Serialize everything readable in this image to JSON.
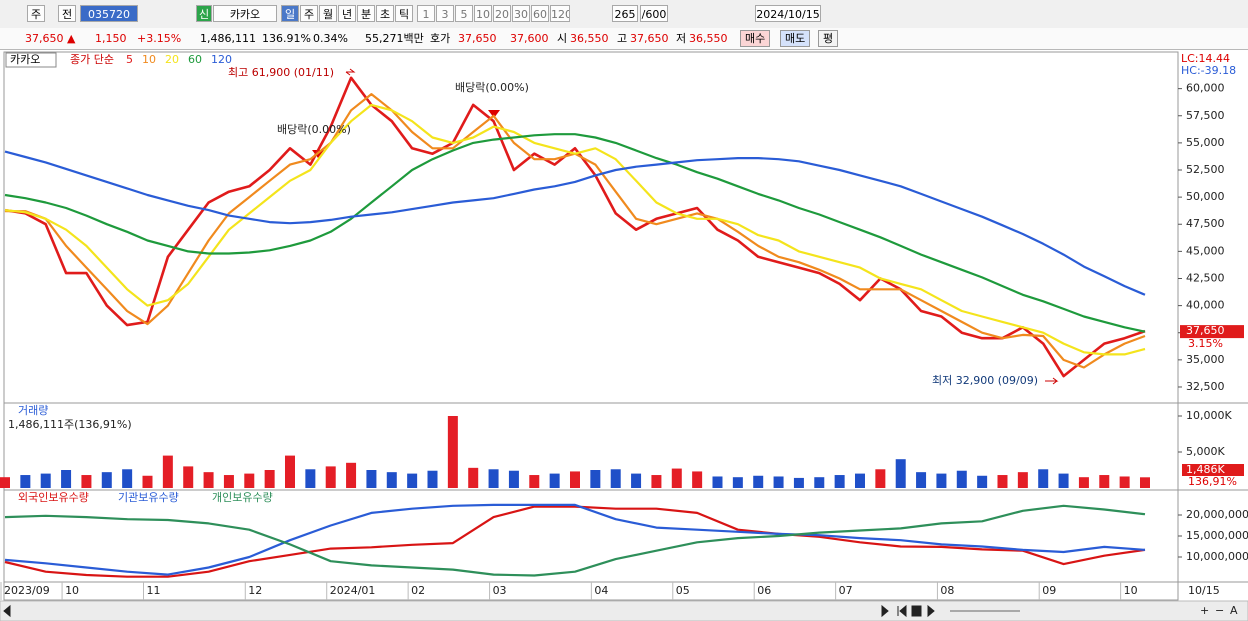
{
  "toolbar": {
    "items": [
      "주",
      "전",
      "035720",
      "신",
      "카카오",
      "일",
      "주",
      "월",
      "년",
      "분",
      "초",
      "틱",
      "1",
      "3",
      "5",
      "10",
      "20",
      "30",
      "60",
      "120",
      "265",
      "/600",
      "2024/10/15"
    ]
  },
  "infobar": {
    "items": [
      "37,650 ▲",
      "1,150",
      "+3.15%",
      "1,486,111",
      "136.91%",
      "0.34%",
      "55,271백만",
      "호가",
      "37,650",
      "37,600",
      "시",
      "36,550",
      "고",
      "37,650",
      "저",
      "36,550",
      "매수",
      "매도",
      "평"
    ]
  },
  "x_axis": {
    "categories": [
      "2023/09",
      null,
      null,
      "10",
      null,
      null,
      null,
      "11",
      null,
      null,
      null,
      null,
      "12",
      null,
      null,
      null,
      "2024/01",
      null,
      null,
      null,
      "02",
      null,
      null,
      null,
      "03",
      null,
      null,
      null,
      null,
      "04",
      null,
      null,
      null,
      "05",
      null,
      null,
      null,
      "06",
      null,
      null,
      null,
      "07",
      null,
      null,
      null,
      null,
      "08",
      null,
      null,
      null,
      null,
      "09",
      null,
      null,
      null,
      "10",
      null
    ],
    "end_label": "10/15"
  },
  "chart_data": [
    {
      "type": "line",
      "stock": "카카오",
      "legend_title": "종가 단순",
      "lc": "LC:14.44",
      "hc": "HC:-39.18",
      "last_price": "37,650",
      "last_change": "3.15%",
      "ylim": [
        31300,
        63100
      ],
      "yticks": [
        {
          "value": 32500,
          "label": "32,500"
        },
        {
          "value": 35000,
          "label": "35,000"
        },
        {
          "value": 37500,
          "label": "37,500"
        },
        {
          "value": 40000,
          "label": "40,000"
        },
        {
          "value": 42500,
          "label": "42,500"
        },
        {
          "value": 45000,
          "label": "45,000"
        },
        {
          "value": 47500,
          "label": "47,500"
        },
        {
          "value": 50000,
          "label": "50,000"
        },
        {
          "value": 52500,
          "label": "52,500"
        },
        {
          "value": 55000,
          "label": "55,000"
        },
        {
          "value": 57500,
          "label": "57,500"
        },
        {
          "value": 60000,
          "label": "60,000"
        }
      ],
      "annotations": [
        "최고 61,900 (01/11)",
        "배당락(0.00%)",
        "배당락(0.00%)",
        "최저 32,900 (09/09)"
      ],
      "series": [
        {
          "name": "5",
          "color": "#e01b1b",
          "values": [
            48800,
            48500,
            47500,
            43000,
            43000,
            40000,
            38200,
            38500,
            44500,
            47000,
            49500,
            50500,
            51000,
            52500,
            54500,
            53000,
            56500,
            61000,
            58500,
            57000,
            54500,
            54000,
            55000,
            58500,
            57000,
            52500,
            54000,
            53000,
            54500,
            52000,
            48500,
            47000,
            48000,
            48500,
            49000,
            47000,
            46000,
            44500,
            44000,
            43500,
            43000,
            42000,
            40500,
            42500,
            41500,
            39500,
            39000,
            37500,
            37000,
            37000,
            38000,
            36500,
            33500,
            35000,
            36500,
            37000,
            37650
          ]
        },
        {
          "name": "10",
          "color": "#f08a1e",
          "values": [
            48700,
            48700,
            48000,
            45500,
            43500,
            41500,
            39500,
            38300,
            40000,
            43000,
            46000,
            48500,
            50000,
            51500,
            53000,
            53500,
            55000,
            58000,
            59500,
            58000,
            56000,
            54500,
            54500,
            56000,
            57500,
            55000,
            53500,
            53500,
            54000,
            53000,
            50500,
            48000,
            47500,
            48000,
            48500,
            48000,
            46800,
            45500,
            44500,
            44000,
            43300,
            42500,
            41500,
            41500,
            41500,
            40500,
            39500,
            38500,
            37500,
            37000,
            37300,
            37200,
            35000,
            34300,
            35500,
            36500,
            37200
          ]
        },
        {
          "name": "20",
          "color": "#f4e41c",
          "values": [
            48800,
            48600,
            48000,
            47000,
            45500,
            43500,
            41500,
            40000,
            40500,
            42000,
            44500,
            47000,
            48500,
            50000,
            51500,
            52500,
            55000,
            57000,
            58500,
            58000,
            57000,
            55500,
            55000,
            55500,
            56500,
            56000,
            55000,
            54500,
            54000,
            54500,
            53500,
            51500,
            49500,
            48500,
            48000,
            48000,
            47500,
            46500,
            46000,
            45000,
            44500,
            44000,
            43500,
            42500,
            42000,
            41500,
            40500,
            39500,
            39000,
            38500,
            38000,
            37500,
            36500,
            35700,
            35500,
            35500,
            36000
          ]
        },
        {
          "name": "60",
          "color": "#1e9a3c",
          "values": [
            50200,
            49900,
            49500,
            49000,
            48300,
            47500,
            46800,
            46000,
            45500,
            45000,
            44800,
            44800,
            44900,
            45100,
            45500,
            46000,
            46800,
            48000,
            49500,
            51000,
            52500,
            53500,
            54300,
            55000,
            55300,
            55500,
            55700,
            55800,
            55800,
            55500,
            55000,
            54300,
            53600,
            53000,
            52300,
            51700,
            51000,
            50300,
            49700,
            49000,
            48400,
            47700,
            47000,
            46300,
            45500,
            44700,
            44000,
            43300,
            42600,
            41800,
            41000,
            40400,
            39700,
            39000,
            38500,
            38000,
            37600
          ]
        },
        {
          "name": "120",
          "color": "#2a5cd6",
          "values": [
            54200,
            53700,
            53200,
            52600,
            52000,
            51400,
            50800,
            50200,
            49700,
            49200,
            48800,
            48300,
            48000,
            47700,
            47600,
            47700,
            47900,
            48200,
            48400,
            48600,
            48900,
            49200,
            49500,
            49700,
            49900,
            50300,
            50700,
            51000,
            51400,
            52000,
            52500,
            52800,
            53000,
            53200,
            53400,
            53500,
            53600,
            53600,
            53500,
            53300,
            52900,
            52500,
            52000,
            51500,
            51000,
            50300,
            49600,
            48900,
            48200,
            47400,
            46600,
            45700,
            44700,
            43600,
            42700,
            41800,
            41000
          ]
        }
      ]
    },
    {
      "type": "bar",
      "title": "거래량",
      "summary": "1,486,111주(136,91%)",
      "last_label": "1,486K",
      "last_pct": "136,91%",
      "ylim": [
        0,
        11250
      ],
      "yticks": [
        {
          "value": 5000,
          "label": "5,000K"
        },
        {
          "value": 10000,
          "label": "10,000K"
        }
      ],
      "values": [
        1500,
        1800,
        2000,
        2500,
        1800,
        2200,
        2600,
        1700,
        4500,
        3000,
        2200,
        1800,
        2000,
        2500,
        4500,
        2600,
        3000,
        3500,
        2500,
        2200,
        2000,
        2400,
        10000,
        2800,
        2600,
        2400,
        1800,
        2000,
        2300,
        2500,
        2600,
        2000,
        1800,
        2700,
        2300,
        1600,
        1500,
        1700,
        1600,
        1400,
        1500,
        1800,
        2000,
        2600,
        4000,
        2200,
        2000,
        2400,
        1700,
        1800,
        2200,
        2600,
        2000,
        1500,
        1800,
        1600,
        1486
      ],
      "colors": [
        "#e41e26",
        "#1f4fc8",
        "#1f4fc8",
        "#1f4fc8",
        "#e41e26",
        "#1f4fc8",
        "#1f4fc8",
        "#e41e26",
        "#e41e26",
        "#e41e26",
        "#e41e26",
        "#e41e26",
        "#e41e26",
        "#e41e26",
        "#e41e26",
        "#1f4fc8",
        "#e41e26",
        "#e41e26",
        "#1f4fc8",
        "#1f4fc8",
        "#1f4fc8",
        "#1f4fc8",
        "#e41e26",
        "#e41e26",
        "#1f4fc8",
        "#1f4fc8",
        "#e41e26",
        "#1f4fc8",
        "#e41e26",
        "#1f4fc8",
        "#1f4fc8",
        "#1f4fc8",
        "#e41e26",
        "#e41e26",
        "#e41e26",
        "#1f4fc8",
        "#1f4fc8",
        "#1f4fc8",
        "#1f4fc8",
        "#1f4fc8",
        "#1f4fc8",
        "#1f4fc8",
        "#1f4fc8",
        "#e41e26",
        "#1f4fc8",
        "#1f4fc8",
        "#1f4fc8",
        "#1f4fc8",
        "#1f4fc8",
        "#e41e26",
        "#e41e26",
        "#1f4fc8",
        "#1f4fc8",
        "#e41e26",
        "#e41e26",
        "#e41e26",
        "#e41e26"
      ]
    },
    {
      "type": "line",
      "ylim": [
        4520000,
        25240000
      ],
      "yticks": [
        {
          "value": 10000000,
          "label": "10,000,000"
        },
        {
          "value": 15000000,
          "label": "15,000,000"
        },
        {
          "value": 20000000,
          "label": "20,000,000"
        }
      ],
      "x": [
        0,
        2,
        4,
        6,
        8,
        10,
        12,
        14,
        16,
        18,
        20,
        22,
        24,
        26,
        28,
        30,
        32,
        34,
        36,
        38,
        40,
        42,
        44,
        46,
        48,
        50,
        52,
        54,
        56
      ],
      "series": [
        {
          "name": "외국인보유수량",
          "color": "#d81414",
          "values": [
            8800000,
            6500000,
            5700000,
            5300000,
            5300000,
            6500000,
            9000000,
            10500000,
            12000000,
            12300000,
            12900000,
            13300000,
            19500000,
            22000000,
            22000000,
            21500000,
            21500000,
            20500000,
            16500000,
            15500000,
            14800000,
            13500000,
            12500000,
            12400000,
            11800000,
            11500000,
            8300000,
            10300000,
            11700000
          ]
        },
        {
          "name": "기관보유수량",
          "color": "#2a5cd6",
          "values": [
            9300000,
            8500000,
            7500000,
            6500000,
            5800000,
            7500000,
            10000000,
            14000000,
            17500000,
            20500000,
            21500000,
            22200000,
            22400000,
            22400000,
            22400000,
            19000000,
            17000000,
            16500000,
            16000000,
            15500000,
            15200000,
            14500000,
            14000000,
            13000000,
            12500000,
            11700000,
            11200000,
            12400000,
            11700000
          ]
        },
        {
          "name": "개인보유수량",
          "color": "#2e8f5a",
          "values": [
            19500000,
            19800000,
            19500000,
            19000000,
            18800000,
            18000000,
            16500000,
            13000000,
            9000000,
            8000000,
            7500000,
            7000000,
            5800000,
            5600000,
            6500000,
            9500000,
            11500000,
            13500000,
            14500000,
            15000000,
            15800000,
            16300000,
            16800000,
            18000000,
            18500000,
            21000000,
            22200000,
            21300000,
            20200000
          ]
        }
      ]
    }
  ],
  "footer": {
    "tools": [
      "+",
      "−",
      "A"
    ]
  }
}
